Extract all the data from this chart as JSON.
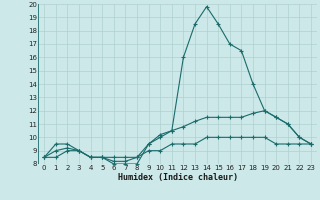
{
  "xlabel": "Humidex (Indice chaleur)",
  "background_color": "#cce8e8",
  "line_color": "#1a6b6b",
  "grid_color": "#b0d0d0",
  "xlim": [
    -0.5,
    23.5
  ],
  "ylim": [
    8,
    20
  ],
  "xticks": [
    0,
    1,
    2,
    3,
    4,
    5,
    6,
    7,
    8,
    9,
    10,
    11,
    12,
    13,
    14,
    15,
    16,
    17,
    18,
    19,
    20,
    21,
    22,
    23
  ],
  "yticks": [
    8,
    9,
    10,
    11,
    12,
    13,
    14,
    15,
    16,
    17,
    18,
    19,
    20
  ],
  "series1_x": [
    0,
    1,
    2,
    3,
    4,
    5,
    6,
    7,
    8,
    9,
    10,
    11,
    12,
    13,
    14,
    15,
    16,
    17,
    18,
    19,
    20,
    21,
    22,
    23
  ],
  "series1_y": [
    8.5,
    9.5,
    9.5,
    9.0,
    8.5,
    8.5,
    8.0,
    8.0,
    8.0,
    9.5,
    10.0,
    10.5,
    16.0,
    18.5,
    19.8,
    18.5,
    17.0,
    16.5,
    14.0,
    12.0,
    11.5,
    11.0,
    10.0,
    9.5
  ],
  "series2_x": [
    0,
    1,
    2,
    3,
    4,
    5,
    6,
    7,
    8,
    9,
    10,
    11,
    12,
    13,
    14,
    15,
    16,
    17,
    18,
    19,
    20,
    21,
    22,
    23
  ],
  "series2_y": [
    8.5,
    9.0,
    9.2,
    9.0,
    8.5,
    8.5,
    8.2,
    8.2,
    8.5,
    9.5,
    10.2,
    10.5,
    10.8,
    11.2,
    11.5,
    11.5,
    11.5,
    11.5,
    11.8,
    12.0,
    11.5,
    11.0,
    10.0,
    9.5
  ],
  "series3_x": [
    0,
    1,
    2,
    3,
    4,
    5,
    6,
    7,
    8,
    9,
    10,
    11,
    12,
    13,
    14,
    15,
    16,
    17,
    18,
    19,
    20,
    21,
    22,
    23
  ],
  "series3_y": [
    8.5,
    8.5,
    9.0,
    9.0,
    8.5,
    8.5,
    8.5,
    8.5,
    8.5,
    9.0,
    9.0,
    9.5,
    9.5,
    9.5,
    10.0,
    10.0,
    10.0,
    10.0,
    10.0,
    10.0,
    9.5,
    9.5,
    9.5,
    9.5
  ]
}
